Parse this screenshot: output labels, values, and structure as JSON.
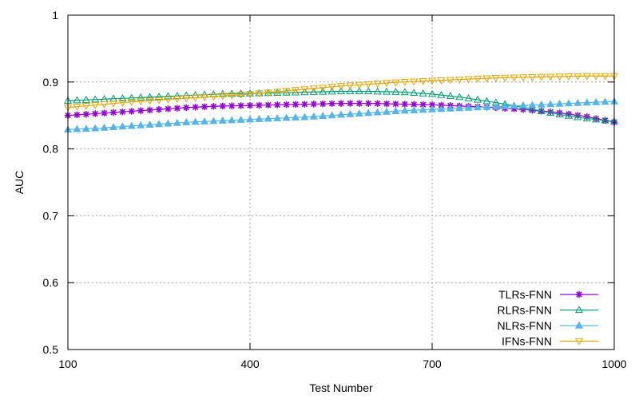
{
  "chart_data": {
    "type": "line",
    "title": "",
    "xlabel": "Test Number",
    "ylabel": "AUC",
    "xlim": [
      100,
      1000
    ],
    "ylim": [
      0.5,
      1.0
    ],
    "xticks": [
      100,
      400,
      700,
      1000
    ],
    "yticks": [
      0.5,
      0.6,
      0.7,
      0.8,
      0.9,
      1.0
    ],
    "xtick_labels": [
      "100",
      "400",
      "700",
      "1000"
    ],
    "ytick_labels": [
      "0.5",
      "0.6",
      "0.7",
      "0.8",
      "0.9",
      "1"
    ],
    "grid": true,
    "legend_position": "bottom-right",
    "x": [
      100,
      150,
      200,
      250,
      300,
      350,
      400,
      450,
      500,
      550,
      600,
      650,
      700,
      750,
      800,
      850,
      900,
      950,
      1000
    ],
    "series": [
      {
        "name": "TLRs-FNN",
        "color": "#9400d3",
        "marker": "star",
        "values": [
          0.85,
          0.853,
          0.856,
          0.859,
          0.862,
          0.864,
          0.865,
          0.866,
          0.867,
          0.868,
          0.868,
          0.867,
          0.866,
          0.864,
          0.862,
          0.859,
          0.855,
          0.849,
          0.84
        ]
      },
      {
        "name": "RLRs-FNN",
        "color": "#009e73",
        "marker": "triangle-up-open",
        "values": [
          0.872,
          0.874,
          0.876,
          0.878,
          0.88,
          0.882,
          0.883,
          0.884,
          0.885,
          0.886,
          0.886,
          0.885,
          0.882,
          0.877,
          0.87,
          0.862,
          0.853,
          0.846,
          0.841
        ]
      },
      {
        "name": "NLRs-FNN",
        "color": "#56b4e9",
        "marker": "triangle-up-filled",
        "values": [
          0.829,
          0.831,
          0.834,
          0.837,
          0.84,
          0.842,
          0.844,
          0.846,
          0.848,
          0.851,
          0.854,
          0.857,
          0.859,
          0.861,
          0.863,
          0.865,
          0.867,
          0.869,
          0.871
        ]
      },
      {
        "name": "IFNs-FNN",
        "color": "#e6a500",
        "marker": "triangle-down-open",
        "values": [
          0.862,
          0.866,
          0.87,
          0.873,
          0.876,
          0.879,
          0.882,
          0.886,
          0.89,
          0.894,
          0.897,
          0.9,
          0.902,
          0.904,
          0.906,
          0.907,
          0.908,
          0.909,
          0.909
        ]
      }
    ]
  }
}
